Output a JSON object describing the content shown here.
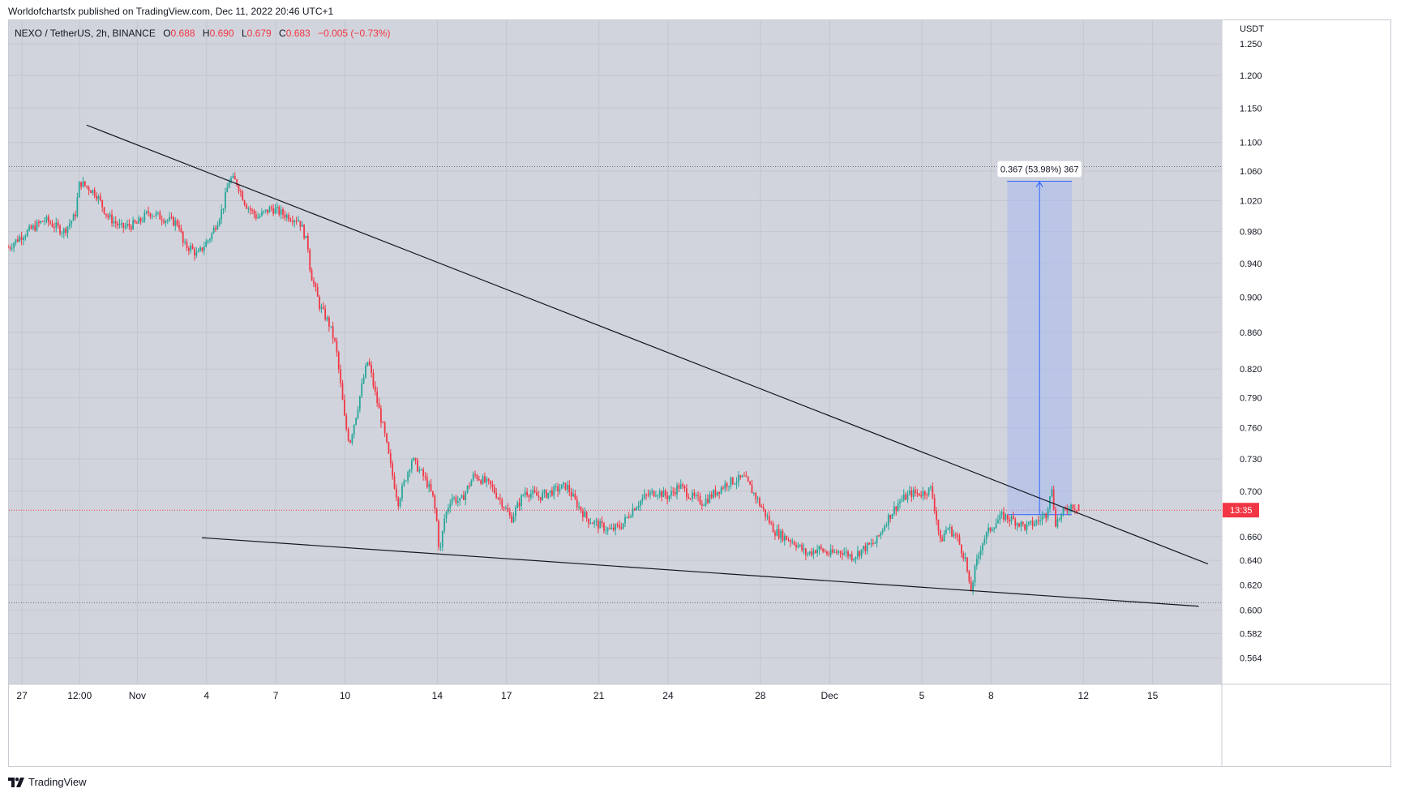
{
  "header": {
    "publisher_line": "Worldofchartsfx published on TradingView.com, Dec 11, 2022 20:46 UTC+1"
  },
  "legend": {
    "symbol": "NEXO / TetherUS, 2h, BINANCE",
    "open_label": "O",
    "open": "0.688",
    "high_label": "H",
    "high": "0.690",
    "low_label": "L",
    "low": "0.679",
    "close_label": "C",
    "close": "0.683",
    "change": "−0.005 (−0.73%)"
  },
  "footer": {
    "brand": "TradingView"
  },
  "colors": {
    "plot_bg": "#d1d4dc",
    "up": "#26a69a",
    "down": "#f23645",
    "trendline": "#131722",
    "measure_fill": "#a9b9f0",
    "measure_line": "#2962ff"
  },
  "chart_data": {
    "type": "candlestick",
    "pair": "NEXO / TetherUS",
    "interval": "2h",
    "exchange": "BINANCE",
    "currency_label": "USDT",
    "y_scale": "log",
    "ylim": [
      0.545,
      1.29
    ],
    "y_ticks": [
      1.25,
      1.2,
      1.15,
      1.1,
      1.06,
      1.02,
      0.98,
      0.94,
      0.9,
      0.86,
      0.82,
      0.79,
      0.76,
      0.73,
      0.7,
      0.66,
      0.64,
      0.62,
      0.6,
      0.582,
      0.564
    ],
    "y_tick_labels": [
      "1.250",
      "1.200",
      "1.150",
      "1.100",
      "1.060",
      "1.020",
      "0.980",
      "0.940",
      "0.900",
      "0.860",
      "0.820",
      "0.790",
      "0.760",
      "0.730",
      "0.700",
      "0.660",
      "0.640",
      "0.620",
      "0.600",
      "0.582",
      "0.564"
    ],
    "x_range_days": [
      -4.6,
      48.0
    ],
    "x_ticks": [
      {
        "label": "27",
        "day": -4
      },
      {
        "label": "12:00",
        "day": -1.5
      },
      {
        "label": "Nov",
        "day": 1
      },
      {
        "label": "4",
        "day": 4
      },
      {
        "label": "7",
        "day": 7
      },
      {
        "label": "10",
        "day": 10
      },
      {
        "label": "14",
        "day": 14
      },
      {
        "label": "17",
        "day": 17
      },
      {
        "label": "21",
        "day": 21
      },
      {
        "label": "24",
        "day": 24
      },
      {
        "label": "28",
        "day": 28
      },
      {
        "label": "Dec",
        "day": 31
      },
      {
        "label": "5",
        "day": 35
      },
      {
        "label": "8",
        "day": 38
      },
      {
        "label": "12",
        "day": 42
      },
      {
        "label": "15",
        "day": 45
      }
    ],
    "last_price": 0.683,
    "countdown_label": "13:35",
    "candle_interval_days": 0.0833,
    "price_path": [
      [
        -4.6,
        0.96
      ],
      [
        -4.0,
        0.975
      ],
      [
        -3.0,
        0.995
      ],
      [
        -2.2,
        0.98
      ],
      [
        -1.7,
        1.0
      ],
      [
        -1.5,
        1.045
      ],
      [
        -0.8,
        1.03
      ],
      [
        -0.3,
        1.0
      ],
      [
        0.3,
        0.985
      ],
      [
        1.0,
        0.99
      ],
      [
        1.5,
        1.005
      ],
      [
        2.3,
        0.995
      ],
      [
        2.8,
        0.99
      ],
      [
        3.0,
        0.962
      ],
      [
        3.3,
        0.96
      ],
      [
        3.6,
        0.95
      ],
      [
        4.2,
        0.975
      ],
      [
        4.7,
        1.01
      ],
      [
        5.0,
        1.05
      ],
      [
        5.3,
        1.045
      ],
      [
        5.7,
        1.015
      ],
      [
        6.2,
        0.998
      ],
      [
        6.8,
        1.01
      ],
      [
        7.5,
        1.0
      ],
      [
        8.0,
        0.995
      ],
      [
        8.2,
        0.98
      ],
      [
        8.4,
        0.96
      ],
      [
        8.5,
        0.93
      ],
      [
        8.9,
        0.89
      ],
      [
        9.3,
        0.87
      ],
      [
        9.6,
        0.845
      ],
      [
        10.0,
        0.765
      ],
      [
        10.2,
        0.745
      ],
      [
        10.5,
        0.775
      ],
      [
        10.8,
        0.81
      ],
      [
        11.0,
        0.83
      ],
      [
        11.3,
        0.795
      ],
      [
        11.7,
        0.755
      ],
      [
        12.0,
        0.72
      ],
      [
        12.3,
        0.69
      ],
      [
        12.6,
        0.71
      ],
      [
        12.9,
        0.73
      ],
      [
        13.2,
        0.72
      ],
      [
        13.5,
        0.71
      ],
      [
        13.8,
        0.695
      ],
      [
        14.0,
        0.67
      ],
      [
        14.1,
        0.643
      ],
      [
        14.3,
        0.675
      ],
      [
        14.6,
        0.695
      ],
      [
        15.0,
        0.69
      ],
      [
        15.6,
        0.715
      ],
      [
        16.3,
        0.705
      ],
      [
        16.8,
        0.69
      ],
      [
        17.2,
        0.675
      ],
      [
        17.8,
        0.7
      ],
      [
        18.4,
        0.695
      ],
      [
        19.0,
        0.7
      ],
      [
        19.6,
        0.705
      ],
      [
        20.0,
        0.69
      ],
      [
        20.5,
        0.675
      ],
      [
        21.0,
        0.67
      ],
      [
        21.5,
        0.665
      ],
      [
        22.0,
        0.67
      ],
      [
        22.5,
        0.685
      ],
      [
        23.0,
        0.695
      ],
      [
        23.5,
        0.7
      ],
      [
        24.0,
        0.695
      ],
      [
        24.5,
        0.705
      ],
      [
        25.0,
        0.695
      ],
      [
        25.5,
        0.69
      ],
      [
        26.0,
        0.698
      ],
      [
        26.6,
        0.708
      ],
      [
        27.3,
        0.712
      ],
      [
        27.8,
        0.695
      ],
      [
        28.2,
        0.68
      ],
      [
        28.6,
        0.665
      ],
      [
        29.0,
        0.66
      ],
      [
        29.5,
        0.655
      ],
      [
        30.0,
        0.645
      ],
      [
        30.5,
        0.65
      ],
      [
        31.0,
        0.645
      ],
      [
        31.5,
        0.648
      ],
      [
        32.0,
        0.643
      ],
      [
        32.5,
        0.65
      ],
      [
        33.0,
        0.655
      ],
      [
        33.5,
        0.675
      ],
      [
        34.0,
        0.69
      ],
      [
        34.5,
        0.698
      ],
      [
        35.0,
        0.698
      ],
      [
        35.4,
        0.702
      ],
      [
        35.6,
        0.68
      ],
      [
        35.8,
        0.655
      ],
      [
        36.1,
        0.668
      ],
      [
        36.5,
        0.66
      ],
      [
        36.9,
        0.64
      ],
      [
        37.1,
        0.612
      ],
      [
        37.3,
        0.632
      ],
      [
        37.6,
        0.655
      ],
      [
        38.0,
        0.668
      ],
      [
        38.5,
        0.678
      ],
      [
        39.0,
        0.674
      ],
      [
        39.5,
        0.668
      ],
      [
        40.0,
        0.673
      ],
      [
        40.4,
        0.68
      ],
      [
        40.6,
        0.705
      ],
      [
        40.8,
        0.672
      ],
      [
        41.1,
        0.68
      ],
      [
        41.5,
        0.688
      ],
      [
        41.8,
        0.683
      ]
    ],
    "trendlines": [
      {
        "name": "upper-resistance",
        "from": [
          -1.2,
          1.125
        ],
        "to": [
          47.4,
          0.637
        ]
      },
      {
        "name": "lower-support",
        "from": [
          3.8,
          0.659
        ],
        "to": [
          47.0,
          0.603
        ]
      }
    ],
    "dotted_levels": [
      1.066,
      0.6058,
      0.683
    ],
    "measure": {
      "label": "0.367 (53.98%) 367",
      "x_start_day": 38.7,
      "x_end_day": 41.5,
      "price_from": 0.679,
      "price_to": 1.046
    }
  }
}
